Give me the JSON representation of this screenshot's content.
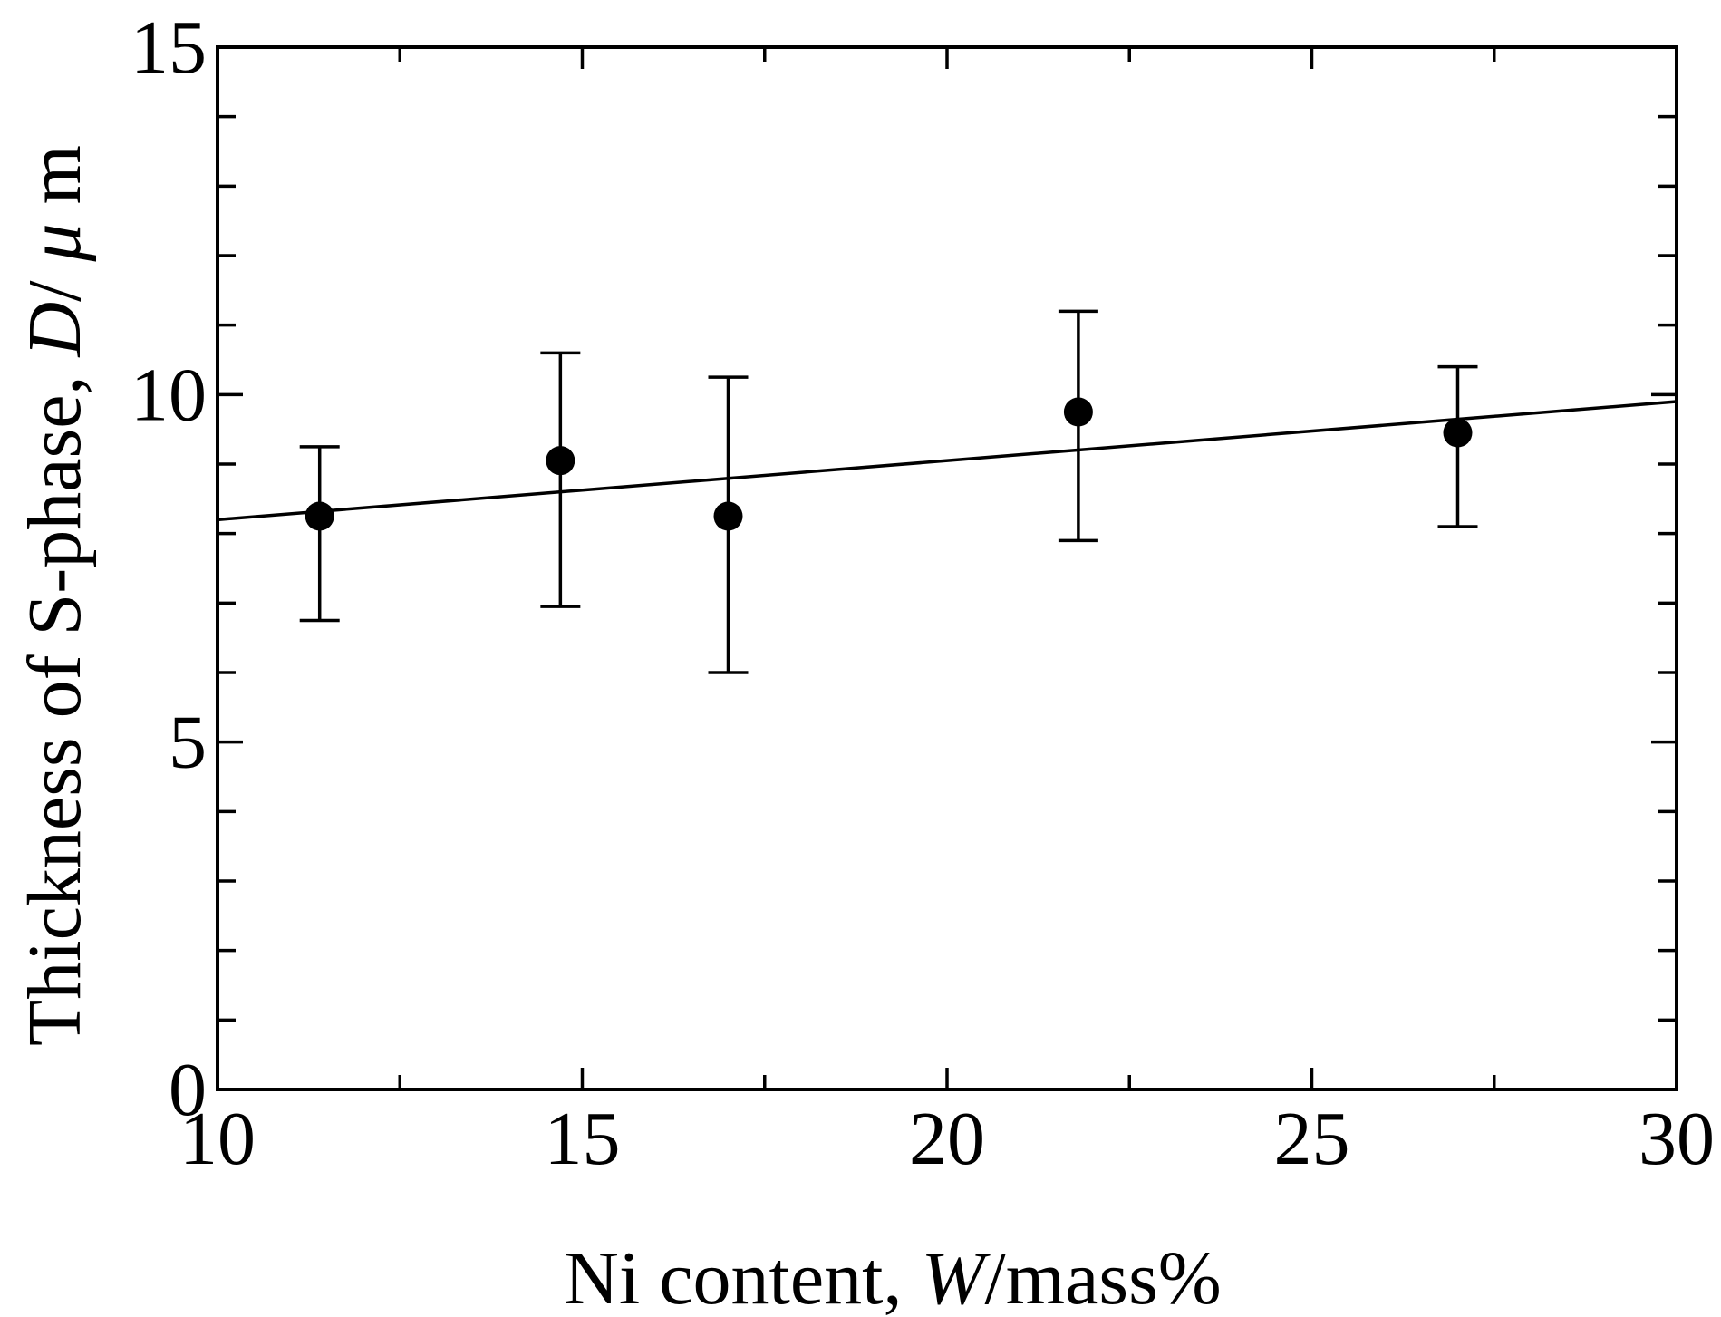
{
  "chart_data": {
    "type": "scatter",
    "title": "",
    "xlabel": {
      "prefix": "Ni content,  ",
      "var": "W",
      "suffix": "/mass%"
    },
    "ylabel": {
      "prefix": "Thickness of S-phase, ",
      "var": "D",
      "suffix": "/ ",
      "unit_var": "μ",
      "unit_suffix": " m"
    },
    "xlim": [
      10,
      30
    ],
    "ylim": [
      0,
      15
    ],
    "x_ticks": [
      10,
      15,
      20,
      25,
      30
    ],
    "y_ticks": [
      0,
      5,
      10,
      15
    ],
    "x_tick_labels": [
      "10",
      "15",
      "20",
      "25",
      "30"
    ],
    "y_tick_labels": [
      "0",
      "5",
      "10",
      "15"
    ],
    "x_minor_step": 2.5,
    "y_minor_step": 1,
    "grid": false,
    "legend": "none",
    "series": [
      {
        "points": [
          {
            "x": 11.4,
            "y": 8.25,
            "err_low": 6.75,
            "err_high": 9.25
          },
          {
            "x": 14.7,
            "y": 9.05,
            "err_low": 6.95,
            "err_high": 10.6
          },
          {
            "x": 17.0,
            "y": 8.25,
            "err_low": 6.0,
            "err_high": 10.25
          },
          {
            "x": 21.8,
            "y": 9.75,
            "err_low": 7.9,
            "err_high": 11.2
          },
          {
            "x": 27.0,
            "y": 9.45,
            "err_low": 8.1,
            "err_high": 10.4
          }
        ]
      }
    ],
    "fit_line": {
      "x": [
        10,
        30
      ],
      "y": [
        8.2,
        9.9
      ]
    }
  }
}
